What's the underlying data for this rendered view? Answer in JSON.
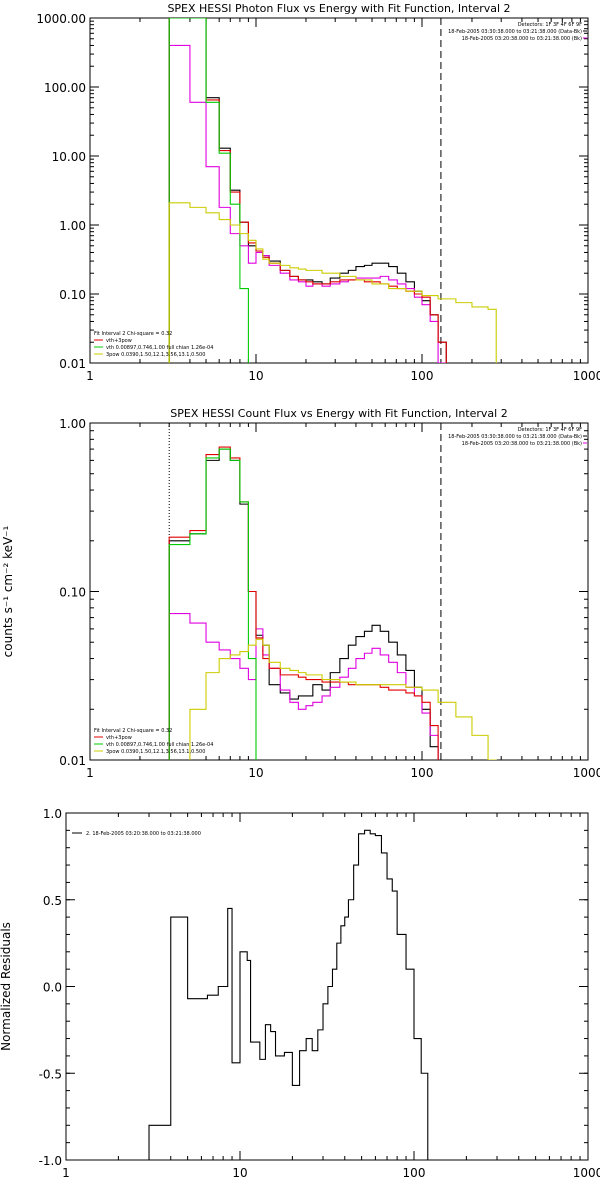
{
  "chart_data": [
    {
      "type": "line",
      "title": "SPEX HESSI Photon Flux vs Energy with Fit Function, Interval 2",
      "ylabel": "",
      "xscale": "log",
      "yscale": "log",
      "xlim": [
        1,
        1000
      ],
      "ylim": [
        0.01,
        1000
      ],
      "xticks": [
        1,
        10,
        100,
        1000
      ],
      "xtick_labels": [
        "1",
        "10",
        "100",
        "1000"
      ],
      "yticks": [
        0.01,
        0.1,
        1,
        10,
        100,
        1000
      ],
      "ytick_labels": [
        "0.01",
        "0.10",
        "1.00",
        "10.00",
        "100.00",
        "1000.00"
      ],
      "grid": false,
      "top_right_text": [
        "Detectors: 1F 3F 4F 6F 9F",
        "18-Feb-2005 03:30:38.000 to 03:21:38.000 (Data-Bk)",
        "18-Feb-2005 03:20:38.000 to 03:21:38.000 (Bk)"
      ],
      "legend_position": "bottom-left",
      "legend_title": "Fit Interval 2   Chi-square = 0.32",
      "legend_entries": [
        {
          "label": "vth+3pow",
          "color": "#e00000"
        },
        {
          "label": "vth 0.00897,0.746,1.00  full chian 1.26e-04",
          "color": "#00cc00"
        },
        {
          "label": "3pow 0.0390,1.50,12.1,3.56,13.1,0.500",
          "color": "#cccc00"
        }
      ],
      "vlines": [
        {
          "x": 3.0,
          "style": "dotted"
        },
        {
          "x": 130,
          "style": "dashed"
        }
      ],
      "series": [
        {
          "color": "#000000",
          "x": [
            3,
            4,
            5,
            6,
            7,
            8,
            9,
            10,
            11,
            12,
            14,
            16,
            18,
            20,
            22,
            25,
            28,
            32,
            36,
            40,
            45,
            50,
            56,
            63,
            71,
            80,
            90,
            100,
            112,
            125
          ],
          "y": [
            1000,
            1000,
            70,
            13,
            3.2,
            1.1,
            0.5,
            0.42,
            0.36,
            0.3,
            0.22,
            0.18,
            0.16,
            0.16,
            0.15,
            0.14,
            0.17,
            0.2,
            0.22,
            0.25,
            0.26,
            0.28,
            0.28,
            0.25,
            0.2,
            0.15,
            0.11,
            0.08,
            0.05,
            0.02
          ]
        },
        {
          "color": "#e000e0",
          "x": [
            3,
            4,
            5,
            6,
            7,
            8,
            9,
            10,
            11,
            12,
            14,
            16,
            18,
            20,
            22,
            25,
            28,
            32,
            36,
            40,
            45,
            50,
            56,
            63,
            71,
            80,
            90,
            100,
            112,
            125
          ],
          "y": [
            400,
            60,
            7,
            1.8,
            0.75,
            0.5,
            0.28,
            0.4,
            0.36,
            0.26,
            0.2,
            0.16,
            0.15,
            0.13,
            0.14,
            0.13,
            0.14,
            0.15,
            0.16,
            0.17,
            0.17,
            0.17,
            0.18,
            0.16,
            0.14,
            0.12,
            0.09,
            0.07,
            0.04,
            0.01
          ]
        },
        {
          "color": "#e00000",
          "x": [
            3,
            4,
            5,
            6,
            7,
            8,
            9,
            10,
            11,
            12,
            14,
            16,
            18,
            20,
            22,
            25,
            28,
            32,
            36,
            40,
            45,
            50,
            56,
            63,
            71,
            80,
            90,
            100,
            112,
            125
          ],
          "y": [
            1000,
            1000,
            65,
            12,
            3,
            1.1,
            0.55,
            0.42,
            0.34,
            0.28,
            0.22,
            0.18,
            0.16,
            0.15,
            0.14,
            0.14,
            0.15,
            0.16,
            0.16,
            0.16,
            0.15,
            0.15,
            0.14,
            0.13,
            0.12,
            0.11,
            0.1,
            0.09,
            0.05,
            0.02
          ]
        },
        {
          "color": "#00cc00",
          "x": [
            3,
            4,
            5,
            6,
            7,
            8,
            9
          ],
          "y": [
            1000,
            1000,
            60,
            11,
            2,
            0.12,
            0.005
          ]
        },
        {
          "color": "#cccc00",
          "x": [
            3,
            4,
            5,
            6,
            7,
            8,
            9,
            10,
            11,
            12,
            14,
            16,
            18,
            20,
            25,
            32,
            40,
            50,
            63,
            80,
            100,
            125,
            160,
            200,
            250,
            280
          ],
          "y": [
            2.1,
            1.8,
            1.5,
            1.2,
            1.0,
            0.75,
            0.6,
            0.45,
            0.32,
            0.28,
            0.26,
            0.24,
            0.23,
            0.22,
            0.2,
            0.18,
            0.16,
            0.14,
            0.12,
            0.11,
            0.095,
            0.085,
            0.075,
            0.065,
            0.06,
            0.005
          ]
        }
      ]
    },
    {
      "type": "line",
      "title": "SPEX HESSI Count Flux vs Energy with Fit Function, Interval 2",
      "ylabel": "counts s⁻¹ cm⁻² keV⁻¹",
      "xscale": "log",
      "yscale": "log",
      "xlim": [
        1,
        1000
      ],
      "ylim": [
        0.01,
        1
      ],
      "xticks": [
        1,
        10,
        100,
        1000
      ],
      "xtick_labels": [
        "1",
        "10",
        "100",
        "1000"
      ],
      "yticks": [
        0.01,
        0.1,
        1
      ],
      "ytick_labels": [
        "0.01",
        "0.10",
        "1.00"
      ],
      "grid": false,
      "top_right_text": [
        "Detectors: 1F 3F 4F 6F 9F",
        "18-Feb-2005 03:30:38.000 to 03:21:38.000 (Data-Bk)",
        "18-Feb-2005 03:20:38.000 to 03:21:38.000 (Bk)"
      ],
      "legend_position": "bottom-left",
      "legend_title": "Fit Interval 2   Chi-square = 0.32",
      "legend_entries": [
        {
          "label": "vth+3pow",
          "color": "#e00000"
        },
        {
          "label": "vth 0.00897,0.746,1.00  full chian 1.26e-04",
          "color": "#00cc00"
        },
        {
          "label": "3pow 0.0390,1.50,12.1,3.56,13.1,0.500",
          "color": "#cccc00"
        }
      ],
      "vlines": [
        {
          "x": 3.0,
          "style": "dotted"
        },
        {
          "x": 130,
          "style": "dashed"
        }
      ],
      "series": [
        {
          "color": "#000000",
          "x": [
            3,
            4,
            5,
            6,
            7,
            8,
            9,
            10,
            11,
            12,
            14,
            16,
            18,
            20,
            22,
            25,
            28,
            32,
            36,
            40,
            45,
            50,
            56,
            63,
            71,
            80,
            90,
            100,
            112,
            125
          ],
          "y": [
            0.2,
            0.22,
            0.6,
            0.7,
            0.6,
            0.33,
            0.1,
            0.055,
            0.048,
            0.028,
            0.025,
            0.023,
            0.024,
            0.024,
            0.028,
            0.026,
            0.033,
            0.04,
            0.048,
            0.054,
            0.058,
            0.063,
            0.058,
            0.05,
            0.042,
            0.034,
            0.027,
            0.02,
            0.012,
            0.009
          ]
        },
        {
          "color": "#e000e0",
          "x": [
            3,
            4,
            5,
            6,
            7,
            8,
            9,
            10,
            11,
            12,
            14,
            16,
            18,
            20,
            22,
            25,
            28,
            32,
            36,
            40,
            45,
            50,
            56,
            63,
            71,
            80,
            90,
            100,
            112,
            125
          ],
          "y": [
            0.074,
            0.065,
            0.05,
            0.045,
            0.04,
            0.035,
            0.03,
            0.06,
            0.042,
            0.035,
            0.026,
            0.022,
            0.02,
            0.021,
            0.022,
            0.024,
            0.027,
            0.031,
            0.035,
            0.04,
            0.043,
            0.046,
            0.042,
            0.038,
            0.033,
            0.027,
            0.024,
            0.019,
            0.014,
            0.009
          ]
        },
        {
          "color": "#e00000",
          "x": [
            3,
            4,
            5,
            6,
            7,
            8,
            9,
            10,
            11,
            12,
            14,
            16,
            18,
            20,
            22,
            25,
            28,
            32,
            36,
            40,
            45,
            50,
            56,
            63,
            71,
            80,
            90,
            100,
            112,
            125
          ],
          "y": [
            0.21,
            0.23,
            0.65,
            0.72,
            0.62,
            0.34,
            0.1,
            0.053,
            0.04,
            0.035,
            0.032,
            0.032,
            0.031,
            0.03,
            0.03,
            0.029,
            0.029,
            0.029,
            0.028,
            0.028,
            0.028,
            0.028,
            0.027,
            0.026,
            0.026,
            0.025,
            0.024,
            0.022,
            0.016,
            0.009
          ]
        },
        {
          "color": "#00cc00",
          "x": [
            3,
            4,
            5,
            6,
            7,
            8,
            9,
            10
          ],
          "y": [
            0.19,
            0.22,
            0.62,
            0.7,
            0.6,
            0.34,
            0.04,
            0.008
          ]
        },
        {
          "color": "#cccc00",
          "x": [
            3,
            4,
            5,
            6,
            7,
            8,
            9,
            10,
            11,
            12,
            14,
            16,
            18,
            20,
            25,
            32,
            40,
            50,
            63,
            80,
            100,
            125,
            160,
            200,
            250
          ],
          "y": [
            0.008,
            0.02,
            0.033,
            0.04,
            0.042,
            0.044,
            0.048,
            0.052,
            0.048,
            0.038,
            0.035,
            0.034,
            0.033,
            0.032,
            0.03,
            0.029,
            0.028,
            0.028,
            0.028,
            0.027,
            0.026,
            0.022,
            0.018,
            0.014,
            0.01
          ]
        }
      ]
    },
    {
      "type": "line",
      "title": "",
      "ylabel": "Normalized Residuals",
      "xscale": "log",
      "yscale": "linear",
      "xlim": [
        1,
        1000
      ],
      "ylim": [
        -1.0,
        1.0
      ],
      "xticks": [
        1,
        10,
        100,
        1000
      ],
      "xtick_labels": [
        "1",
        "10",
        "100",
        "1000"
      ],
      "yticks": [
        -1.0,
        -0.5,
        0.0,
        0.5,
        1.0
      ],
      "ytick_labels": [
        "-1.0",
        "-0.5",
        "0.0",
        "0.5",
        "1.0"
      ],
      "grid": false,
      "legend_position": "top-left",
      "legend_entries": [
        {
          "label": "2. 18-Feb-2005 03:20:38.000 to 03:21:38.000",
          "color": "#000000"
        }
      ],
      "series": [
        {
          "color": "#000000",
          "x": [
            3,
            3.5,
            4,
            4.5,
            5,
            5.5,
            6,
            6.5,
            7,
            7.5,
            8,
            8.5,
            9,
            9.5,
            10,
            10.5,
            11,
            11.5,
            12,
            13,
            14,
            15,
            16,
            17,
            18,
            20,
            22,
            24,
            26,
            28,
            30,
            32,
            34,
            36,
            38,
            40,
            42,
            45,
            48,
            52,
            56,
            60,
            65,
            70,
            75,
            80,
            90,
            100,
            110,
            120,
            130
          ],
          "y": [
            -0.8,
            -0.8,
            0.4,
            0.4,
            -0.07,
            -0.07,
            -0.07,
            -0.05,
            -0.05,
            0.0,
            0.0,
            0.45,
            -0.44,
            -0.44,
            0.2,
            0.2,
            0.15,
            -0.32,
            -0.32,
            -0.42,
            -0.22,
            -0.26,
            -0.4,
            -0.4,
            -0.38,
            -0.57,
            -0.37,
            -0.3,
            -0.37,
            -0.25,
            -0.1,
            0.0,
            0.1,
            0.25,
            0.35,
            0.4,
            0.5,
            0.7,
            0.88,
            0.9,
            0.88,
            0.87,
            0.77,
            0.62,
            0.55,
            0.3,
            0.1,
            -0.3,
            -0.5,
            -1.0,
            -1.0
          ]
        }
      ]
    }
  ]
}
